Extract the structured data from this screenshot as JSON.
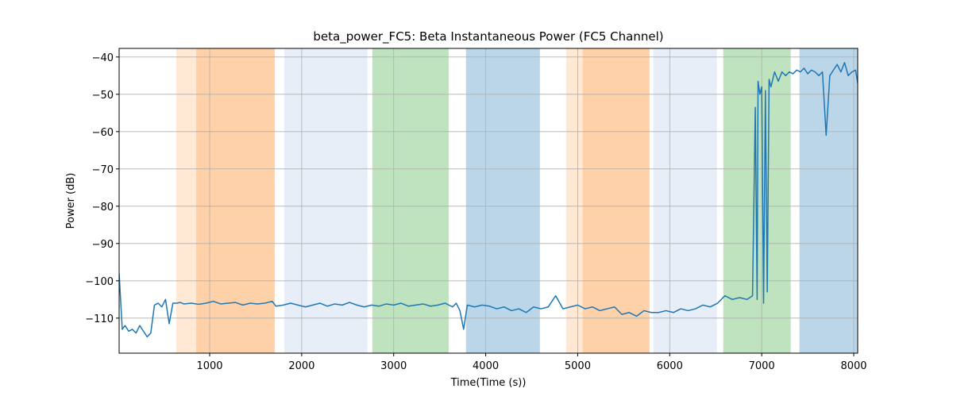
{
  "chart_data": {
    "type": "line",
    "title": "beta_power_FC5: Beta Instantaneous Power (FC5 Channel)",
    "xlabel": "Time(Time (s))",
    "ylabel": "Power (dB)",
    "xlim": [
      16,
      8043
    ],
    "ylim": [
      -119.4,
      -37.7
    ],
    "xticks": [
      1000,
      2000,
      3000,
      4000,
      5000,
      6000,
      7000,
      8000
    ],
    "yticks": [
      {
        "value": -110,
        "label": "−110"
      },
      {
        "value": -100,
        "label": "−100"
      },
      {
        "value": -90,
        "label": "−90"
      },
      {
        "value": -80,
        "label": "−80"
      },
      {
        "value": -70,
        "label": "−70"
      },
      {
        "value": -60,
        "label": "−60"
      },
      {
        "value": -50,
        "label": "−50"
      },
      {
        "value": -40,
        "label": "−40"
      }
    ],
    "grid": true,
    "spans": [
      {
        "start": 637,
        "end": 1707,
        "color": "#ff7f0e",
        "alpha": 0.18
      },
      {
        "start": 853,
        "end": 1707,
        "color": "#ff7f0e",
        "alpha": 0.22
      },
      {
        "start": 1811,
        "end": 2716,
        "color": "#aec7e8",
        "alpha": 0.3
      },
      {
        "start": 2768,
        "end": 3597,
        "color": "#2ca02c",
        "alpha": 0.3
      },
      {
        "start": 3786,
        "end": 4589,
        "color": "#1f77b4",
        "alpha": 0.3
      },
      {
        "start": 4873,
        "end": 5780,
        "color": "#ff7f0e",
        "alpha": 0.18
      },
      {
        "start": 5055,
        "end": 5780,
        "color": "#ff7f0e",
        "alpha": 0.22
      },
      {
        "start": 5822,
        "end": 6513,
        "color": "#aec7e8",
        "alpha": 0.3
      },
      {
        "start": 6582,
        "end": 7315,
        "color": "#2ca02c",
        "alpha": 0.3
      },
      {
        "start": 7410,
        "end": 8043,
        "color": "#1f77b4",
        "alpha": 0.3
      }
    ],
    "series": [
      {
        "color": "#1f77b4",
        "x": [
          16,
          50,
          80,
          120,
          160,
          200,
          240,
          280,
          320,
          360,
          400,
          440,
          480,
          520,
          560,
          600,
          640,
          680,
          720,
          800,
          880,
          960,
          1040,
          1120,
          1200,
          1280,
          1360,
          1440,
          1520,
          1600,
          1680,
          1720,
          1800,
          1880,
          1960,
          2040,
          2120,
          2200,
          2280,
          2360,
          2440,
          2520,
          2600,
          2680,
          2760,
          2840,
          2920,
          3000,
          3080,
          3160,
          3240,
          3320,
          3400,
          3480,
          3560,
          3600,
          3640,
          3680,
          3720,
          3760,
          3800,
          3880,
          3960,
          4040,
          4120,
          4200,
          4280,
          4360,
          4440,
          4520,
          4600,
          4680,
          4760,
          4840,
          4920,
          5000,
          5080,
          5160,
          5240,
          5320,
          5400,
          5480,
          5560,
          5640,
          5720,
          5800,
          5880,
          5960,
          6040,
          6120,
          6200,
          6280,
          6360,
          6440,
          6520,
          6600,
          6680,
          6760,
          6840,
          6900,
          6930,
          6950,
          6960,
          6980,
          7000,
          7020,
          7040,
          7060,
          7080,
          7100,
          7140,
          7180,
          7220,
          7260,
          7300,
          7340,
          7380,
          7420,
          7460,
          7500,
          7540,
          7580,
          7620,
          7660,
          7700,
          7740,
          7780,
          7820,
          7860,
          7900,
          7940,
          7980,
          8020,
          8043
        ],
        "values": [
          -98,
          -113,
          -112,
          -113.5,
          -113,
          -114,
          -112,
          -113.5,
          -115,
          -114,
          -106.5,
          -106,
          -107,
          -105,
          -111.5,
          -106,
          -106,
          -105.8,
          -106.2,
          -106,
          -106.3,
          -106,
          -105.5,
          -106.2,
          -106,
          -105.8,
          -106.5,
          -106,
          -106.2,
          -106,
          -105.5,
          -106.8,
          -106.5,
          -106,
          -106.5,
          -107,
          -106.5,
          -106,
          -106.8,
          -106.2,
          -106.5,
          -105.8,
          -106.5,
          -107,
          -106.5,
          -106.8,
          -106.2,
          -106.5,
          -106,
          -106.8,
          -106.5,
          -106.2,
          -106.8,
          -106.5,
          -106,
          -106.5,
          -107,
          -106,
          -108,
          -113,
          -106.5,
          -107,
          -106.5,
          -106.8,
          -107.5,
          -107,
          -108,
          -107.5,
          -108.5,
          -107,
          -107.5,
          -107,
          -104,
          -107.5,
          -107,
          -106.5,
          -107.5,
          -107,
          -108,
          -107.5,
          -107,
          -109,
          -108.5,
          -109.5,
          -108,
          -108.5,
          -108.5,
          -108,
          -108.5,
          -107.5,
          -108,
          -107.5,
          -106.5,
          -107,
          -106,
          -104,
          -105,
          -104.5,
          -105,
          -104,
          -53.5,
          -105,
          -46.5,
          -50,
          -48,
          -106,
          -49,
          -103,
          -46,
          -48,
          -44,
          -46.5,
          -44,
          -45,
          -44,
          -44.5,
          -43.5,
          -44,
          -43,
          -44.5,
          -43.5,
          -44,
          -45,
          -44,
          -61,
          -45,
          -43.5,
          -42,
          -44,
          -41.5,
          -45,
          -44,
          -43.5,
          -47
        ]
      }
    ]
  }
}
